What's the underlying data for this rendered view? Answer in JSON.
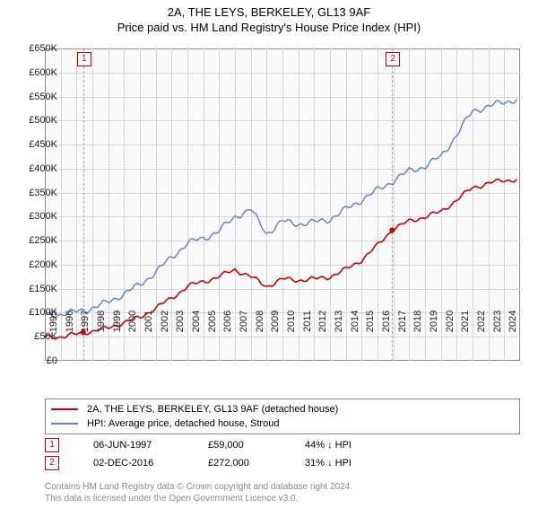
{
  "title": "2A, THE LEYS, BERKELEY, GL13 9AF",
  "subtitle": "Price paid vs. HM Land Registry's House Price Index (HPI)",
  "chart": {
    "type": "line",
    "background_color": "#fafafa",
    "grid_color": "#d6d6d6",
    "border_color": "#888888",
    "x": {
      "min": 1995,
      "max": 2025,
      "ticks": [
        1995,
        1996,
        1997,
        1998,
        1999,
        2000,
        2001,
        2002,
        2003,
        2004,
        2005,
        2006,
        2007,
        2008,
        2009,
        2010,
        2011,
        2012,
        2013,
        2014,
        2015,
        2016,
        2017,
        2018,
        2019,
        2020,
        2021,
        2022,
        2023,
        2024
      ]
    },
    "y": {
      "min": 0,
      "max": 650000,
      "ticks": [
        0,
        50000,
        100000,
        150000,
        200000,
        250000,
        300000,
        350000,
        400000,
        450000,
        500000,
        550000,
        600000,
        650000
      ],
      "tick_labels": [
        "£0",
        "£50K",
        "£100K",
        "£150K",
        "£200K",
        "£250K",
        "£300K",
        "£350K",
        "£400K",
        "£450K",
        "£500K",
        "£550K",
        "£600K",
        "£650K"
      ]
    },
    "series": [
      {
        "name": "2A, THE LEYS, BERKELEY, GL13 9AF (detached house)",
        "color": "#d00000",
        "line_width": 1.6,
        "points": [
          [
            1995,
            50000
          ],
          [
            1996,
            50000
          ],
          [
            1997,
            55000
          ],
          [
            1997.5,
            59000
          ],
          [
            1998,
            62000
          ],
          [
            1999,
            68000
          ],
          [
            2000,
            80000
          ],
          [
            2001,
            90000
          ],
          [
            2002,
            110000
          ],
          [
            2003,
            130000
          ],
          [
            2004,
            155000
          ],
          [
            2005,
            165000
          ],
          [
            2006,
            175000
          ],
          [
            2007,
            190000
          ],
          [
            2008,
            175000
          ],
          [
            2009,
            155000
          ],
          [
            2010,
            170000
          ],
          [
            2011,
            168000
          ],
          [
            2012,
            170000
          ],
          [
            2013,
            175000
          ],
          [
            2014,
            190000
          ],
          [
            2015,
            210000
          ],
          [
            2016,
            240000
          ],
          [
            2016.9,
            272000
          ],
          [
            2017,
            275000
          ],
          [
            2018,
            290000
          ],
          [
            2019,
            300000
          ],
          [
            2020,
            310000
          ],
          [
            2021,
            335000
          ],
          [
            2022,
            360000
          ],
          [
            2023,
            370000
          ],
          [
            2024,
            375000
          ],
          [
            2024.8,
            378000
          ]
        ]
      },
      {
        "name": "HPI: Average price, detached house, Stroud",
        "color": "#5b7fd0",
        "line_width": 1.4,
        "points": [
          [
            1995,
            95000
          ],
          [
            1996,
            97000
          ],
          [
            1997,
            102000
          ],
          [
            1998,
            110000
          ],
          [
            1999,
            122000
          ],
          [
            2000,
            140000
          ],
          [
            2001,
            158000
          ],
          [
            2002,
            185000
          ],
          [
            2003,
            215000
          ],
          [
            2004,
            245000
          ],
          [
            2005,
            255000
          ],
          [
            2006,
            270000
          ],
          [
            2007,
            300000
          ],
          [
            2008,
            315000
          ],
          [
            2008.7,
            280000
          ],
          [
            2009,
            265000
          ],
          [
            2010,
            290000
          ],
          [
            2011,
            285000
          ],
          [
            2012,
            288000
          ],
          [
            2013,
            295000
          ],
          [
            2014,
            315000
          ],
          [
            2015,
            335000
          ],
          [
            2016,
            355000
          ],
          [
            2017,
            375000
          ],
          [
            2018,
            395000
          ],
          [
            2019,
            405000
          ],
          [
            2020,
            425000
          ],
          [
            2021,
            470000
          ],
          [
            2022,
            520000
          ],
          [
            2023,
            530000
          ],
          [
            2024,
            538000
          ],
          [
            2024.8,
            545000
          ]
        ]
      }
    ],
    "markers": [
      {
        "idx": "1",
        "x": 1997.42,
        "dot_series": 0,
        "dot_y": 59000
      },
      {
        "idx": "2",
        "x": 2016.92,
        "dot_series": 0,
        "dot_y": 272000
      }
    ],
    "marker_line_color": "#cc9999",
    "marker_dot_radius": 3
  },
  "legend": [
    {
      "label": "2A, THE LEYS, BERKELEY, GL13 9AF (detached house)",
      "color": "#d00000"
    },
    {
      "label": "HPI: Average price, detached house, Stroud",
      "color": "#5b7fd0"
    }
  ],
  "sales": [
    {
      "idx": "1",
      "date": "06-JUN-1997",
      "price": "£59,000",
      "pct": "44%",
      "arrow": "↓",
      "ref": "HPI"
    },
    {
      "idx": "2",
      "date": "02-DEC-2016",
      "price": "£272,000",
      "pct": "31%",
      "arrow": "↓",
      "ref": "HPI"
    }
  ],
  "attribution_line1": "Contains HM Land Registry data © Crown copyright and database right 2024.",
  "attribution_line2": "This data is licensed under the Open Government Licence v3.0."
}
